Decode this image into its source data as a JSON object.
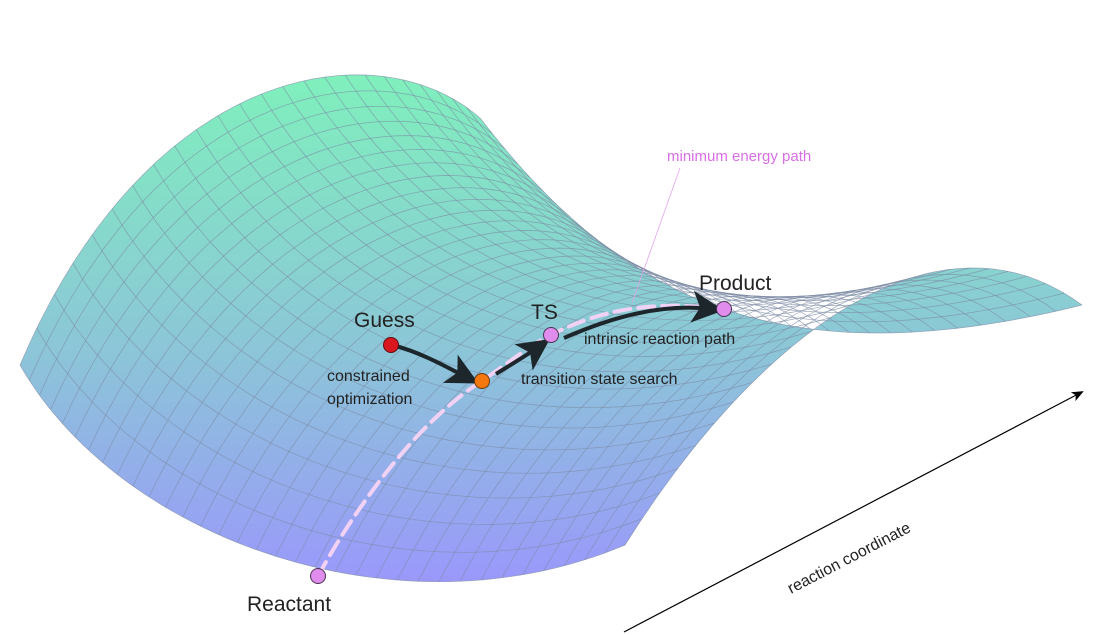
{
  "labels": {
    "reactant": "Reactant",
    "product": "Product",
    "ts": "TS",
    "guess": "Guess",
    "constrained_line1": "constrained",
    "constrained_line2": "optimization",
    "transition_search": "transition state search",
    "intrinsic_path": "intrinsic reaction path",
    "minimum_energy_path": "minimum energy path",
    "reaction_coordinate": "reaction coordinate"
  },
  "colors": {
    "surface_top": "#7ff0bc",
    "surface_bottom": "#9a98fb",
    "grid": "#7d8ca6",
    "path": "#f2d2f4",
    "node_fill": "#df8cec",
    "guess_fill": "#d8171e",
    "intermediate_fill": "#f5770f",
    "arrow": "#1c262b",
    "mep_text": "#d96ee4",
    "text": "#222222"
  },
  "nodes": {
    "reactant": "stationary-point",
    "product": "stationary-point",
    "ts": "saddle-point",
    "guess": "initial-guess",
    "intermediate": "constrained-optimum"
  }
}
